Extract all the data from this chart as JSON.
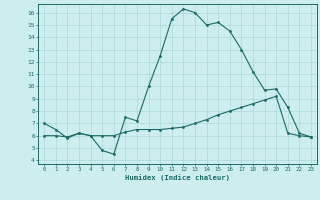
{
  "xlabel": "Humidex (Indice chaleur)",
  "xlim_left": -0.5,
  "xlim_right": 23.5,
  "ylim_bottom": 3.7,
  "ylim_top": 16.7,
  "yticks": [
    4,
    5,
    6,
    7,
    8,
    9,
    10,
    11,
    12,
    13,
    14,
    15,
    16
  ],
  "xticks": [
    0,
    1,
    2,
    3,
    4,
    5,
    6,
    7,
    8,
    9,
    10,
    11,
    12,
    13,
    14,
    15,
    16,
    17,
    18,
    19,
    20,
    21,
    22,
    23
  ],
  "bg_color": "#cceeed",
  "line_color": "#1a6b63",
  "grid_color": "#aad8d4",
  "line1_x": [
    0,
    1,
    2,
    3,
    4,
    5,
    6,
    7,
    8,
    9,
    10,
    11,
    12,
    13,
    14,
    15,
    16,
    17,
    18,
    19,
    20,
    21,
    22,
    23
  ],
  "line1_y": [
    7.0,
    6.5,
    5.8,
    6.2,
    6.0,
    4.8,
    4.5,
    7.5,
    7.2,
    10.0,
    12.5,
    15.5,
    16.3,
    16.0,
    15.0,
    15.2,
    14.5,
    13.0,
    11.2,
    9.7,
    9.8,
    8.3,
    6.2,
    5.9
  ],
  "line2_x": [
    0,
    1,
    2,
    3,
    4,
    5,
    6,
    7,
    8,
    9,
    10,
    11,
    12,
    13,
    14,
    15,
    16,
    17,
    18,
    19,
    20,
    21,
    22,
    23
  ],
  "line2_y": [
    6.0,
    6.0,
    5.9,
    6.2,
    6.0,
    6.0,
    6.0,
    6.3,
    6.5,
    6.5,
    6.5,
    6.6,
    6.7,
    7.0,
    7.3,
    7.7,
    8.0,
    8.3,
    8.6,
    8.9,
    9.2,
    6.2,
    6.0,
    5.9
  ]
}
